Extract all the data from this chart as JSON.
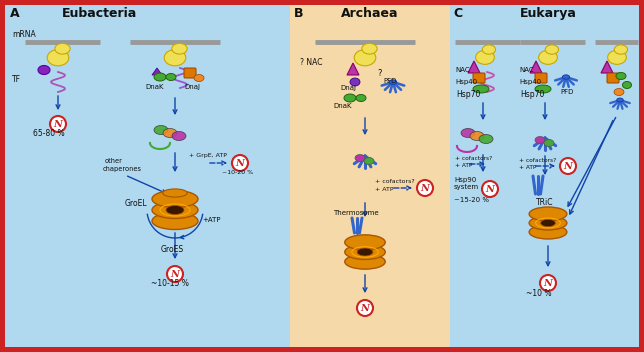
{
  "fig_width": 6.44,
  "fig_height": 3.52,
  "dpi": 100,
  "border_color": "#cc2222",
  "bg_A": "#b0d8ee",
  "bg_B": "#f5d9a8",
  "bg_C": "#b0d8ee",
  "title_A": "Eubacteria",
  "title_B": "Archaea",
  "title_C": "Eukarya",
  "ribosome_color": "#f0e055",
  "ribosome_outline": "#c8a800",
  "mrna_color": "#999999",
  "TF_color": "#8822bb",
  "NAC_color": "#bb33aa",
  "Hsp40_color": "#dd7700",
  "green_color": "#44aa33",
  "orange_color": "#ee8822",
  "purple_color": "#7733bb",
  "PFD_color": "#3366cc",
  "chaperonin_amber": "#dd8800",
  "chaperonin_dark": "#aa5500",
  "chaperonin_hole": "#3a1800",
  "arrow_color": "#1144aa",
  "N_ring_color": "#cc2222",
  "text_color": "#222222",
  "blue_line": "#2255aa"
}
